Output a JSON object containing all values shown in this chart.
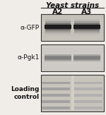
{
  "title": "Yeast strains",
  "col_labels": [
    "A2",
    "A3"
  ],
  "row_labels": [
    "α-GFP",
    "α-Pgk1",
    "Loading\ncontrol"
  ],
  "fig_bg": "#f0ede8",
  "panel_bg_gfp": "#c8c4bc",
  "panel_bg_pgk1": "#d0cdc8",
  "panel_bg_loading": "#c8c4bc",
  "panel_border": "#333333",
  "label_fontsize": 6.5,
  "title_fontsize": 7.5,
  "col_fontsize": 7.5,
  "title_color": "#111111",
  "label_color": "#111111"
}
